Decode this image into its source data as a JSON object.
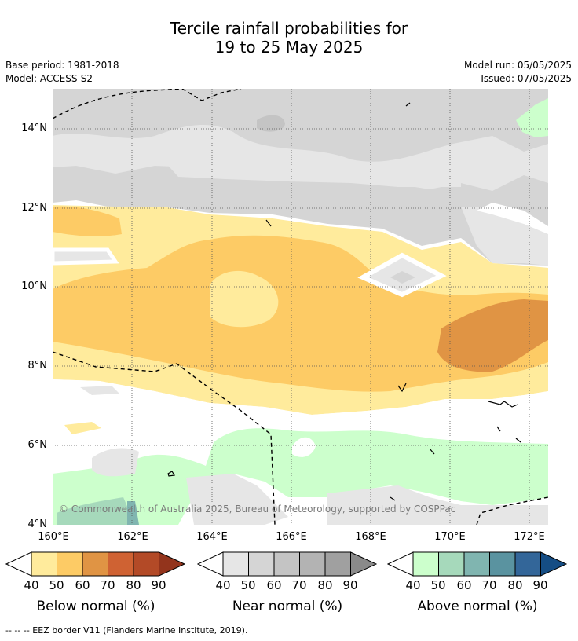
{
  "title_line1": "Tercile rainfall probabilities for",
  "title_line2": "19 to 25 May 2025",
  "base_period": "Base period: 1981-2018",
  "model": "Model: ACCESS-S2",
  "model_run": "Model run: 05/05/2025",
  "issued": "Issued: 07/05/2025",
  "axes": {
    "y_ticks": [
      "14°N",
      "12°N",
      "10°N",
      "8°N",
      "6°N",
      "4°N"
    ],
    "x_ticks": [
      "160°E",
      "162°E",
      "164°E",
      "166°E",
      "168°E",
      "170°E",
      "172°E"
    ]
  },
  "credit": "© Commonwealth of Australia 2025, Bureau of Meteorology, supported by COSPPac",
  "legends": [
    {
      "title": "Below normal (%)",
      "ticks": [
        "40",
        "50",
        "60",
        "70",
        "80",
        "90"
      ],
      "colors": [
        "#ffeb9c",
        "#fdcb65",
        "#e09444",
        "#cf6233",
        "#b34a27",
        "#93341c"
      ]
    },
    {
      "title": "Near normal (%)",
      "ticks": [
        "40",
        "50",
        "60",
        "70",
        "80",
        "90"
      ],
      "colors": [
        "#e6e6e6",
        "#d5d5d5",
        "#c4c4c4",
        "#b3b3b3",
        "#a0a0a0",
        "#8a8a8a"
      ]
    },
    {
      "title": "Above normal (%)",
      "ticks": [
        "40",
        "50",
        "60",
        "70",
        "80",
        "90"
      ],
      "colors": [
        "#ccffcc",
        "#a6d9bb",
        "#80b5b0",
        "#5a93a0",
        "#336699",
        "#154d84"
      ]
    }
  ],
  "footnote": "--  --  -- EEZ border V11 (Flanders Marine Institute, 2019)."
}
